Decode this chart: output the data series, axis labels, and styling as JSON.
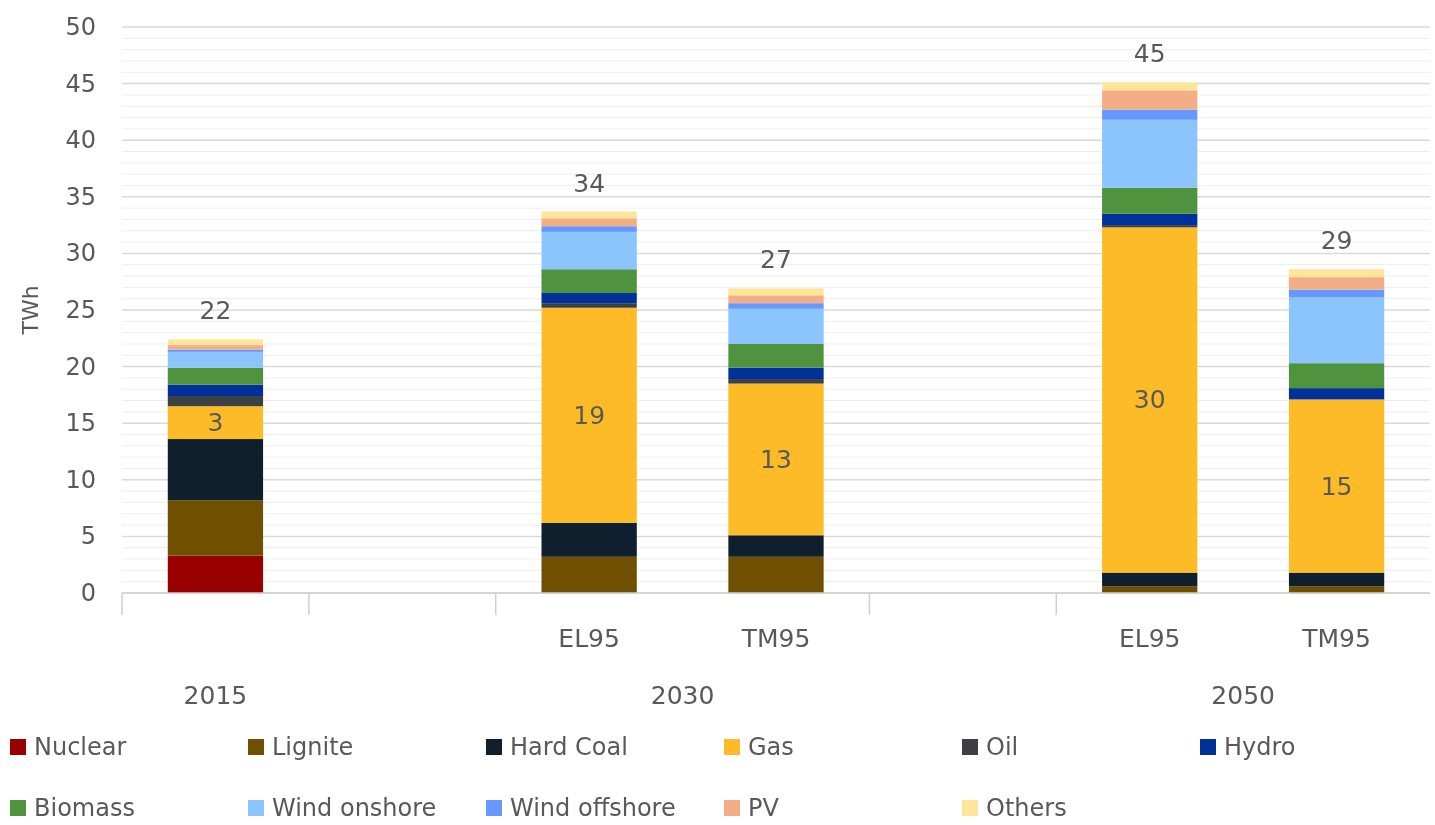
{
  "chart_data": {
    "type": "bar",
    "stacked": true,
    "ylabel": "TWh",
    "categories": [
      null,
      null,
      "EL95",
      "TM95",
      null,
      "EL95",
      "TM95"
    ],
    "series": [
      {
        "name": "Nuclear",
        "color": "#990000",
        "values": [
          3.3,
          null,
          0,
          0,
          null,
          0,
          0
        ]
      },
      {
        "name": "Lignite",
        "color": "#6e5000",
        "values": [
          4.9,
          null,
          3.2,
          3.2,
          null,
          0.6,
          0.6
        ]
      },
      {
        "name": "Hard Coal",
        "color": "#0f1f2e",
        "values": [
          5.4,
          null,
          3.0,
          1.9,
          null,
          1.2,
          1.2
        ]
      },
      {
        "name": "Gas",
        "color": "#fdbb27",
        "values": [
          2.9,
          null,
          19.0,
          13.4,
          null,
          30.5,
          15.3
        ],
        "value_labels": [
          "3",
          null,
          "19",
          "13",
          null,
          "30",
          "15"
        ]
      },
      {
        "name": "Oil",
        "color": "#3c4045",
        "values": [
          0.9,
          null,
          0.4,
          0.4,
          null,
          0.2,
          0
        ]
      },
      {
        "name": "Hydro",
        "color": "#00319a",
        "values": [
          1.0,
          null,
          0.9,
          1.0,
          null,
          1.0,
          1.0
        ]
      },
      {
        "name": "Biomass",
        "color": "#4f933f",
        "values": [
          1.5,
          null,
          2.1,
          2.1,
          null,
          2.3,
          2.2
        ]
      },
      {
        "name": "Wind onshore",
        "color": "#8cc5fd",
        "values": [
          1.4,
          null,
          3.3,
          3.1,
          null,
          6.0,
          5.8
        ]
      },
      {
        "name": "Wind offshore",
        "color": "#6699ff",
        "values": [
          0.2,
          null,
          0.5,
          0.5,
          null,
          0.9,
          0.7
        ]
      },
      {
        "name": "PV",
        "color": "#f3ae86",
        "values": [
          0.4,
          null,
          0.7,
          0.7,
          null,
          1.7,
          1.1
        ]
      },
      {
        "name": "Others",
        "color": "#fde59a",
        "values": [
          0.5,
          null,
          0.6,
          0.6,
          null,
          0.7,
          0.7
        ]
      }
    ],
    "totals": [
      "22",
      null,
      "34",
      "27",
      null,
      "45",
      "29"
    ],
    "annotations": [
      "2015",
      "2030",
      "2050"
    ],
    "ylim": [
      0,
      50
    ],
    "yticks": [
      0,
      {
        "value": 1,
        "label": null
      },
      {
        "value": 2,
        "label": null
      },
      {
        "value": 3,
        "label": null
      },
      {
        "value": 4,
        "label": null
      },
      5,
      {
        "value": 6,
        "label": null
      },
      {
        "value": 7,
        "label": null
      },
      {
        "value": 8,
        "label": null
      },
      {
        "value": 9,
        "label": null
      },
      10,
      {
        "value": 11,
        "label": null
      },
      {
        "value": 12,
        "label": null
      },
      {
        "value": 13,
        "label": null
      },
      {
        "value": 14,
        "label": null
      },
      15,
      {
        "value": 16,
        "label": null
      },
      {
        "value": 17,
        "label": null
      },
      {
        "value": 18,
        "label": null
      },
      {
        "value": 19,
        "label": null
      },
      20,
      {
        "value": 21,
        "label": null
      },
      {
        "value": 22,
        "label": null
      },
      {
        "value": 23,
        "label": null
      },
      {
        "value": 24,
        "label": null
      },
      25,
      {
        "value": 26,
        "label": null
      },
      {
        "value": 27,
        "label": null
      },
      {
        "value": 28,
        "label": null
      },
      {
        "value": 29,
        "label": null
      },
      30,
      {
        "value": 31,
        "label": null
      },
      {
        "value": 32,
        "label": null
      },
      {
        "value": 33,
        "label": null
      },
      {
        "value": 34,
        "label": null
      },
      35,
      {
        "value": 36,
        "label": null
      },
      {
        "value": 37,
        "label": null
      },
      {
        "value": 38,
        "label": null
      },
      {
        "value": 39,
        "label": null
      },
      40,
      {
        "value": 41,
        "label": null
      },
      {
        "value": 42,
        "label": null
      },
      {
        "value": 43,
        "label": null
      },
      {
        "value": 44,
        "label": null
      },
      45,
      {
        "value": 46,
        "label": null
      },
      {
        "value": 47,
        "label": null
      },
      {
        "value": 48,
        "label": null
      },
      {
        "value": 49,
        "label": null
      },
      50
    ],
    "grid": "y",
    "legend": "bottom"
  }
}
